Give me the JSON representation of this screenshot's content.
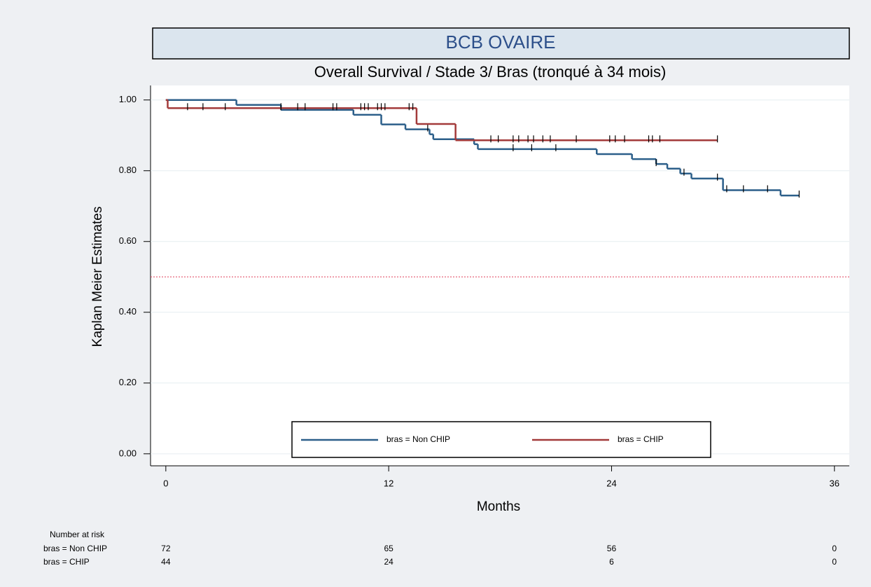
{
  "chart_data": {
    "type": "km",
    "title": "BCB OVAIRE",
    "subtitle": "Overall Survival / Stade 3/ Bras (tronqué à 34 mois)",
    "x_label": "Months",
    "y_label": "Kaplan Meier Estimates",
    "xlim": [
      -1.2,
      36.8
    ],
    "ylim": [
      -0.034,
      1.041
    ],
    "xticks": [
      0,
      12,
      24,
      36
    ],
    "yticks": [
      {
        "value": 0,
        "label": "0.00"
      },
      {
        "value": 0.2,
        "label": "0.20"
      },
      {
        "value": 0.4,
        "label": "0.40"
      },
      {
        "value": 0.6,
        "label": "0.60"
      },
      {
        "value": 0.8,
        "label": "0.80"
      },
      {
        "value": 1,
        "label": "1.00"
      }
    ],
    "grid": true,
    "reference_line": {
      "value": 0.5,
      "color": "#e0405a"
    },
    "legend": "bottom",
    "series": [
      {
        "name": "bras = Non CHIP",
        "color": "#2c5f8a",
        "x": [
          0,
          3.8,
          6.2,
          10.1,
          11.6,
          12.9,
          14.2,
          14.4,
          16.6,
          16.8,
          23.2,
          25.1,
          26.4,
          27.0,
          27.7,
          28.3,
          30.0,
          33.1,
          34.1
        ],
        "values": [
          1,
          0.986,
          0.972,
          0.958,
          0.931,
          0.917,
          0.903,
          0.889,
          0.875,
          0.861,
          0.847,
          0.833,
          0.819,
          0.806,
          0.792,
          0.778,
          0.745,
          0.73,
          0.73
        ],
        "censored": [
          14.1,
          18.7,
          19.7,
          21.0,
          26.4,
          27.9,
          29.7,
          30.2,
          31.1,
          32.4,
          34.1
        ]
      },
      {
        "name": "bras = CHIP",
        "color": "#a33a3a",
        "x": [
          0,
          0.1,
          13.5,
          15.6,
          29.7
        ],
        "values": [
          1,
          0.977,
          0.932,
          0.886,
          0.886
        ],
        "censored": [
          1.17,
          2.0,
          3.2,
          6.2,
          7.1,
          7.5,
          9.0,
          9.2,
          10.5,
          10.7,
          10.9,
          11.4,
          11.6,
          11.8,
          13.1,
          13.3,
          17.5,
          17.9,
          18.7,
          19.0,
          19.5,
          19.8,
          20.3,
          20.7,
          22.1,
          23.9,
          24.2,
          24.7,
          26.0,
          26.2,
          26.6,
          29.7
        ]
      }
    ],
    "risk_table": {
      "title": "Number at risk",
      "times": [
        0,
        12,
        24,
        36
      ],
      "rows": [
        {
          "label": "bras = Non CHIP",
          "values": [
            72,
            65,
            56,
            0
          ]
        },
        {
          "label": "bras = CHIP",
          "values": [
            44,
            24,
            6,
            0
          ]
        }
      ]
    }
  }
}
